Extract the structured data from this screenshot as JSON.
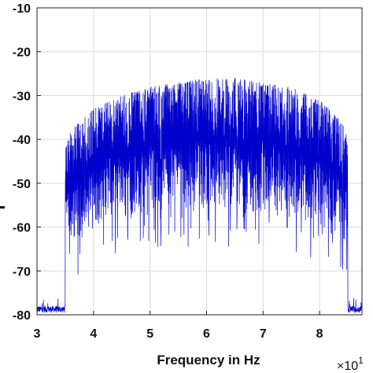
{
  "chart_data": {
    "type": "line",
    "title": "",
    "xlabel": "Frequency in Hz",
    "ylabel": "",
    "x_exponent_label": "×10",
    "x_exponent_power": "1",
    "xlim": [
      3,
      8.75
    ],
    "ylim": [
      -80,
      -10
    ],
    "grid": true,
    "x_ticks": [
      3,
      4,
      5,
      6,
      7,
      8
    ],
    "y_ticks": [
      -10,
      -20,
      -30,
      -40,
      -50,
      -60,
      -70,
      -80
    ],
    "x_tick_labels": [
      "3",
      "4",
      "5",
      "6",
      "7",
      "8"
    ],
    "y_tick_labels": [
      "-10",
      "-20",
      "-30",
      "-40",
      "-50",
      "-60",
      "-70",
      "-80"
    ],
    "series": [
      {
        "color": "#0000cc",
        "description_points": {
          "x": [
            3.0,
            3.5,
            3.5,
            3.6,
            4.0,
            4.5,
            5.0,
            5.5,
            6.0,
            6.5,
            7.0,
            7.5,
            8.0,
            8.4,
            8.5,
            8.5,
            8.75
          ],
          "upper_envelope": [
            -79,
            -78,
            -42,
            -38,
            -33,
            -30,
            -28,
            -27,
            -26,
            -26,
            -27,
            -28,
            -31,
            -36,
            -40,
            -78,
            -79
          ],
          "lower_envelope": [
            -80,
            -80,
            -62,
            -66,
            -60,
            -58,
            -57,
            -57,
            -56,
            -57,
            -57,
            -58,
            -60,
            -64,
            -66,
            -80,
            -80
          ]
        }
      }
    ]
  }
}
